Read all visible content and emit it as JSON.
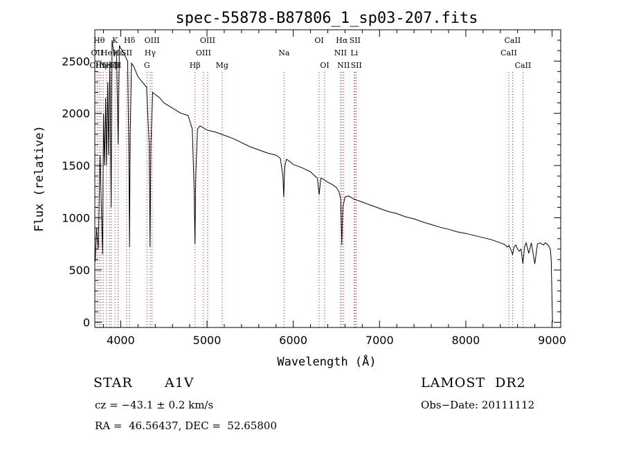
{
  "chart_data": {
    "type": "line",
    "title": "spec-55878-B87806_1_sp03-207.fits",
    "xlabel": "Wavelength (Å)",
    "ylabel": "Flux (relative)",
    "xlim": [
      3700,
      9100
    ],
    "ylim": [
      -50,
      2800
    ],
    "xticks": [
      "4000",
      "5000",
      "6000",
      "7000",
      "8000",
      "9000"
    ],
    "xtick_values": [
      4000,
      5000,
      6000,
      7000,
      8000,
      9000
    ],
    "yticks": [
      "0",
      "500",
      "1000",
      "1500",
      "2000",
      "2500"
    ],
    "ytick_values": [
      0,
      500,
      1000,
      1500,
      2000,
      2500
    ],
    "grid": false,
    "line_color": "#000000",
    "marker_color": "#cc0000",
    "series": [
      {
        "x": [
          3705,
          3720,
          3740,
          3760,
          3790,
          3800,
          3812,
          3825,
          3835,
          3850,
          3860,
          3875,
          3889,
          3900,
          3925,
          3950,
          3970,
          3985,
          4000,
          4020,
          4050,
          4080,
          4095,
          4102,
          4110,
          4125,
          4150,
          4200,
          4250,
          4300,
          4330,
          4340,
          4350,
          4370,
          4400,
          4450,
          4500,
          4600,
          4700,
          4780,
          4830,
          4850,
          4861,
          4870,
          4890,
          4920,
          4960,
          5000,
          5050,
          5100,
          5200,
          5300,
          5400,
          5500,
          5600,
          5700,
          5800,
          5850,
          5880,
          5890,
          5900,
          5920,
          5960,
          6000,
          6100,
          6200,
          6250,
          6280,
          6300,
          6320,
          6350,
          6400,
          6450,
          6500,
          6530,
          6550,
          6563,
          6575,
          6600,
          6640,
          6700,
          6800,
          6900,
          7000,
          7100,
          7200,
          7300,
          7400,
          7500,
          7600,
          7700,
          7800,
          7900,
          8000,
          8100,
          8200,
          8300,
          8400,
          8450,
          8480,
          8500,
          8520,
          8542,
          8560,
          8580,
          8600,
          8620,
          8640,
          8662,
          8680,
          8700,
          8730,
          8760,
          8800,
          8830,
          8860,
          8880,
          8900,
          8920,
          8940,
          8960,
          8980,
          8990,
          9000,
          9005
        ],
        "y": [
          580,
          900,
          700,
          1600,
          650,
          2000,
          1500,
          2150,
          1500,
          2300,
          1600,
          2500,
          1100,
          2700,
          2550,
          2600,
          1700,
          2650,
          2620,
          2600,
          2550,
          2500,
          1600,
          720,
          1800,
          2480,
          2450,
          2350,
          2300,
          2250,
          1700,
          720,
          1700,
          2200,
          2180,
          2150,
          2100,
          2050,
          2000,
          1980,
          1850,
          1300,
          750,
          1400,
          1850,
          1880,
          1860,
          1840,
          1830,
          1820,
          1790,
          1760,
          1720,
          1680,
          1650,
          1620,
          1600,
          1570,
          1400,
          1200,
          1480,
          1560,
          1540,
          1510,
          1480,
          1440,
          1400,
          1380,
          1220,
          1380,
          1370,
          1340,
          1320,
          1290,
          1250,
          1180,
          740,
          1100,
          1200,
          1210,
          1180,
          1150,
          1120,
          1090,
          1060,
          1040,
          1010,
          990,
          960,
          935,
          910,
          890,
          865,
          850,
          830,
          810,
          790,
          760,
          745,
          720,
          735,
          700,
          650,
          720,
          740,
          700,
          680,
          700,
          560,
          720,
          760,
          660,
          760,
          560,
          750,
          760,
          750,
          740,
          760,
          750,
          730,
          700,
          600,
          200,
          0
        ],
        "name": ""
      }
    ],
    "line_markers": [
      {
        "wave": 3727,
        "labels": [
          {
            "text": "OII",
            "row": 1
          },
          {
            "text": "OIII",
            "row": 2
          }
        ]
      },
      {
        "wave": 3750,
        "labels": [
          {
            "text": "Hθ",
            "row": 0
          }
        ]
      },
      {
        "wave": 3771,
        "labels": [
          {
            "text": "Hη",
            "row": 2
          }
        ]
      },
      {
        "wave": 3798,
        "labels": []
      },
      {
        "wave": 3835,
        "labels": [
          {
            "text": "He",
            "row": 1
          }
        ]
      },
      {
        "wave": 3869,
        "labels": [
          {
            "text": "NeIII",
            "row": 2
          }
        ]
      },
      {
        "wave": 3889,
        "labels": [
          {
            "text": "Hζ",
            "row": 2
          }
        ]
      },
      {
        "wave": 3934,
        "labels": [
          {
            "text": "K",
            "row": 0
          }
        ]
      },
      {
        "wave": 3969,
        "labels": [
          {
            "text": "H",
            "row": 2
          }
        ]
      },
      {
        "wave": 3970,
        "labels": [
          {
            "text": "Hε",
            "row": 1
          }
        ]
      },
      {
        "wave": 4069,
        "labels": [
          {
            "text": "SII",
            "row": 1
          }
        ]
      },
      {
        "wave": 4102,
        "labels": [
          {
            "text": "Hδ",
            "row": 0
          }
        ]
      },
      {
        "wave": 4304,
        "labels": [
          {
            "text": "G",
            "row": 2
          }
        ]
      },
      {
        "wave": 4341,
        "labels": [
          {
            "text": "Hγ",
            "row": 1
          }
        ]
      },
      {
        "wave": 4363,
        "labels": [
          {
            "text": "OIII",
            "row": 0
          }
        ]
      },
      {
        "wave": 4861,
        "labels": [
          {
            "text": "Hβ",
            "row": 2
          }
        ]
      },
      {
        "wave": 4959,
        "labels": [
          {
            "text": "OIII",
            "row": 1
          }
        ]
      },
      {
        "wave": 5007,
        "labels": [
          {
            "text": "OIII",
            "row": 0
          }
        ]
      },
      {
        "wave": 5175,
        "labels": [
          {
            "text": "Mg",
            "row": 2
          }
        ]
      },
      {
        "wave": 5893,
        "labels": [
          {
            "text": "Na",
            "row": 1
          }
        ]
      },
      {
        "wave": 6300,
        "labels": [
          {
            "text": "OI",
            "row": 0
          }
        ]
      },
      {
        "wave": 6364,
        "labels": [
          {
            "text": "OI",
            "row": 2
          }
        ]
      },
      {
        "wave": 6548,
        "labels": [
          {
            "text": "NII",
            "row": 1
          }
        ]
      },
      {
        "wave": 6563,
        "labels": [
          {
            "text": "Hα",
            "row": 0
          }
        ]
      },
      {
        "wave": 6583,
        "labels": [
          {
            "text": "NII",
            "row": 2
          }
        ]
      },
      {
        "wave": 6707,
        "labels": [
          {
            "text": "Li",
            "row": 1
          }
        ]
      },
      {
        "wave": 6716,
        "labels": [
          {
            "text": "SII",
            "row": 0
          }
        ]
      },
      {
        "wave": 6731,
        "labels": [
          {
            "text": "SII",
            "row": 2
          }
        ]
      },
      {
        "wave": 8498,
        "labels": [
          {
            "text": "CaII",
            "row": 1
          }
        ]
      },
      {
        "wave": 8542,
        "labels": [
          {
            "text": "CaII",
            "row": 0
          }
        ]
      },
      {
        "wave": 8662,
        "labels": [
          {
            "text": "CaII",
            "row": 2
          }
        ]
      }
    ]
  },
  "info": {
    "object_type": "STAR",
    "subclass": "A1V",
    "survey": "LAMOST  DR2",
    "redshift": "cz = −43.1 ± 0.2 km/s",
    "obs_date": "Obs−Date: 20111112",
    "coords": "RA =  46.56437, DEC =  52.65800"
  }
}
